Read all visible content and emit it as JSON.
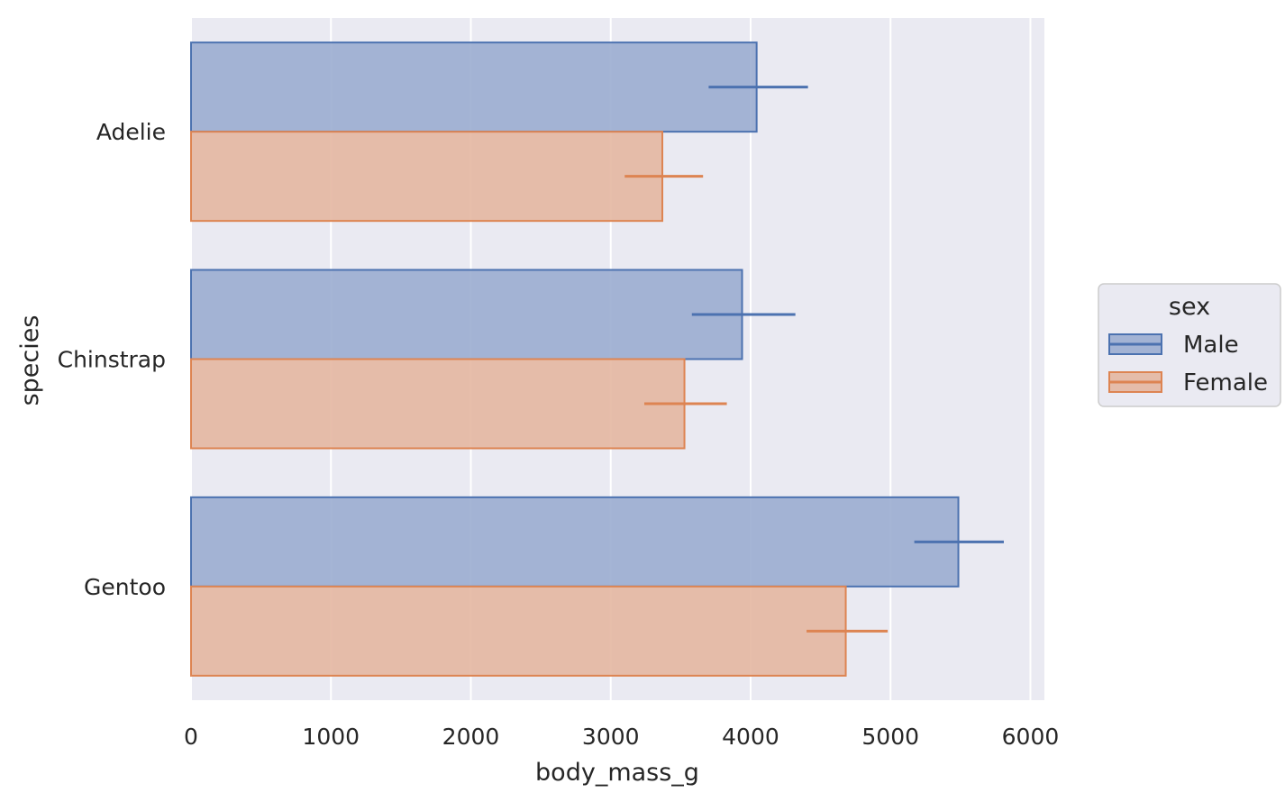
{
  "chart_data": {
    "type": "bar",
    "orientation": "horizontal",
    "categories": [
      "Adelie",
      "Chinstrap",
      "Gentoo"
    ],
    "series": [
      {
        "name": "Male",
        "color": "#4c72b0",
        "fill": "#9badd0",
        "values": [
          4043,
          3939,
          5485
        ],
        "ci_low": [
          3700,
          3580,
          5170
        ],
        "ci_high": [
          4410,
          4320,
          5810
        ]
      },
      {
        "name": "Female",
        "color": "#dd8452",
        "fill": "#e4b7a1",
        "values": [
          3369,
          3527,
          4680
        ],
        "ci_low": [
          3100,
          3240,
          4400
        ],
        "ci_high": [
          3660,
          3830,
          4980
        ]
      }
    ],
    "xlabel": "body_mass_g",
    "ylabel": "species",
    "xlim": [
      0,
      6100
    ],
    "xticks": [
      0,
      1000,
      2000,
      3000,
      4000,
      5000,
      6000
    ],
    "xtick_labels": [
      "0",
      "1000",
      "2000",
      "3000",
      "4000",
      "5000",
      "6000"
    ],
    "grid": true,
    "background": "#eaeaf2",
    "legend": {
      "title": "sex",
      "placement": "right"
    }
  }
}
